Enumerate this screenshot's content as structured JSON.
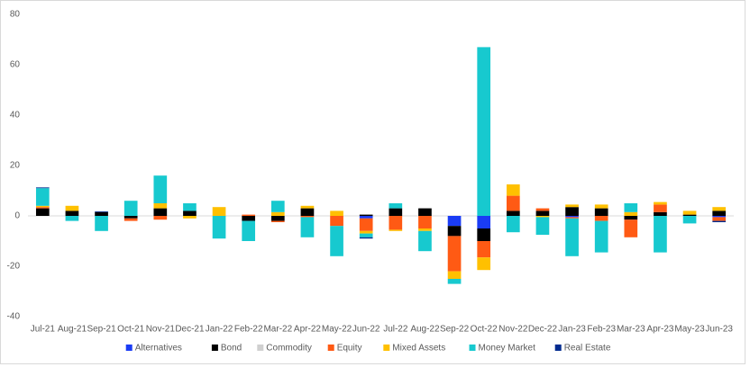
{
  "chart_data": {
    "type": "bar",
    "stacked": true,
    "categories": [
      "Jul-21",
      "Aug-21",
      "Sep-21",
      "Oct-21",
      "Nov-21",
      "Dec-21",
      "Jan-22",
      "Feb-22",
      "Mar-22",
      "Apr-22",
      "May-22",
      "Jun-22",
      "Jul-22",
      "Aug-22",
      "Sep-22",
      "Oct-22",
      "Nov-22",
      "Dec-22",
      "Jan-23",
      "Feb-23",
      "Mar-23",
      "Apr-23",
      "May-23",
      "Jun-23"
    ],
    "series": [
      {
        "name": "Alternatives",
        "color": "#1a3cf5",
        "values": [
          0,
          0,
          0,
          0,
          0,
          0,
          0,
          0,
          0,
          0,
          0,
          -1,
          0,
          0,
          -4,
          -5,
          0,
          0,
          -0.5,
          0,
          0,
          0,
          0,
          -0.5
        ]
      },
      {
        "name": "Bond",
        "color": "#000000",
        "values": [
          3,
          2,
          1.5,
          -1,
          3,
          2,
          0,
          -2,
          -2,
          3,
          0,
          0.5,
          3,
          3,
          -4,
          -5,
          2,
          2,
          3.5,
          3,
          -1.5,
          1.5,
          0.5,
          2
        ]
      },
      {
        "name": "Commodity",
        "color": "#d0d0d0",
        "values": [
          0,
          0,
          0,
          0,
          0,
          0,
          0,
          0,
          0,
          0,
          0,
          0,
          0,
          0,
          0,
          0,
          0,
          0,
          0,
          0,
          0,
          0,
          0,
          0
        ]
      },
      {
        "name": "Equity",
        "color": "#ff5a14",
        "values": [
          0.5,
          0,
          0,
          -1,
          -1.5,
          0,
          0,
          0.5,
          -0.5,
          -0.5,
          -4,
          -5,
          -5.5,
          -5,
          -14,
          -6.5,
          6,
          1,
          -0.5,
          -2,
          -7,
          3,
          0,
          -1.5
        ]
      },
      {
        "name": "Mixed Assets",
        "color": "#ffc000",
        "values": [
          0.5,
          2,
          0,
          0,
          2,
          -1,
          3.5,
          0,
          1.5,
          1,
          2,
          -1,
          -0.5,
          -1,
          -3,
          -5,
          4.5,
          -0.5,
          1,
          1.5,
          1.5,
          1,
          1.5,
          1.5
        ]
      },
      {
        "name": "Money Market",
        "color": "#17c9cf",
        "values": [
          7,
          -2,
          -6,
          6,
          11,
          3,
          -9,
          -8,
          4.5,
          -8,
          -12,
          -1.5,
          2,
          -8,
          -2,
          67,
          -6.5,
          -7,
          -15,
          -12.5,
          3.5,
          -14.5,
          -3,
          0
        ]
      },
      {
        "name": "Real Estate",
        "color": "#002a8f",
        "values": [
          0.3,
          0,
          0.3,
          0,
          0,
          0,
          0,
          0,
          0,
          0,
          0,
          -0.5,
          0,
          0,
          0,
          0,
          0,
          0,
          0,
          0,
          0,
          0,
          0,
          -0.5
        ]
      }
    ],
    "ylim": [
      -40,
      80
    ],
    "yticks": [
      -40,
      -20,
      0,
      20,
      40,
      60,
      80
    ],
    "grid": false,
    "legend": "bottom"
  }
}
